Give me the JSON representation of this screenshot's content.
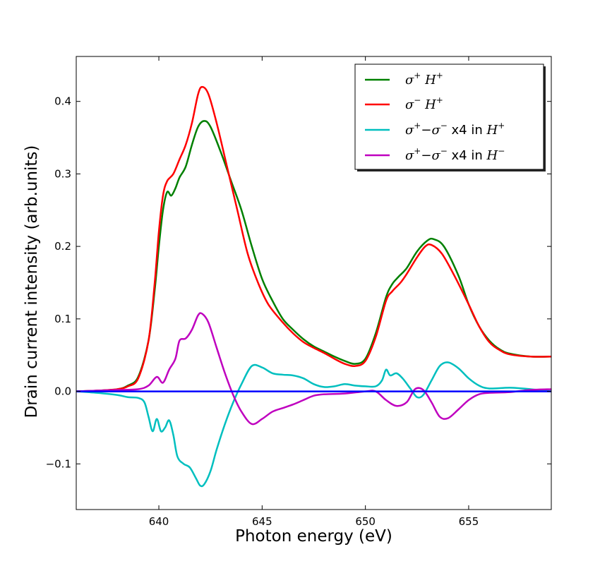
{
  "chart_data": {
    "type": "line",
    "xlabel": "Photon energy (eV)",
    "ylabel": "Drain current intensity (arb.units)",
    "xlim": [
      636,
      659
    ],
    "ylim": [
      -0.163,
      0.462
    ],
    "x_ticks": [
      640,
      645,
      650,
      655
    ],
    "x_tick_labels": [
      "640",
      "645",
      "650",
      "655"
    ],
    "y_ticks": [
      -0.1,
      0.0,
      0.1,
      0.2,
      0.3,
      0.4
    ],
    "y_tick_labels": [
      "−0.1",
      "0.0",
      "0.1",
      "0.2",
      "0.3",
      "0.4"
    ],
    "grid": false,
    "legend_position": "top-right",
    "baseline": {
      "y": 0.0,
      "color": "#0000ff"
    },
    "legend": [
      {
        "base": "σ",
        "sup1": "+",
        "mid": " H",
        "sup2": "+",
        "suffix": ""
      },
      {
        "base": "σ",
        "sup1": "−",
        "mid": "  H",
        "sup2": "+",
        "suffix": ""
      },
      {
        "base": "σ",
        "sup1": "+",
        "mid": "−σ",
        "sup2": "−",
        "suffix": "  x4 in ",
        "tail": "H",
        "sup3": "+"
      },
      {
        "base": "σ",
        "sup1": "+",
        "mid": "−σ",
        "sup2": "−",
        "suffix": "  x4 in ",
        "tail": "H",
        "sup3": "−"
      }
    ],
    "series": [
      {
        "color": "#008000",
        "points": [
          [
            636,
            0
          ],
          [
            637,
            0.001
          ],
          [
            638,
            0.003
          ],
          [
            638.5,
            0.008
          ],
          [
            639,
            0.02
          ],
          [
            639.5,
            0.07
          ],
          [
            639.8,
            0.14
          ],
          [
            640,
            0.2
          ],
          [
            640.2,
            0.25
          ],
          [
            640.4,
            0.275
          ],
          [
            640.6,
            0.27
          ],
          [
            640.8,
            0.28
          ],
          [
            641,
            0.295
          ],
          [
            641.3,
            0.31
          ],
          [
            641.6,
            0.34
          ],
          [
            641.9,
            0.365
          ],
          [
            642.2,
            0.373
          ],
          [
            642.5,
            0.365
          ],
          [
            643,
            0.33
          ],
          [
            643.5,
            0.29
          ],
          [
            644,
            0.25
          ],
          [
            644.5,
            0.2
          ],
          [
            645,
            0.155
          ],
          [
            645.5,
            0.125
          ],
          [
            646,
            0.1
          ],
          [
            646.5,
            0.085
          ],
          [
            647,
            0.072
          ],
          [
            647.5,
            0.062
          ],
          [
            648,
            0.055
          ],
          [
            648.5,
            0.048
          ],
          [
            649,
            0.042
          ],
          [
            649.5,
            0.038
          ],
          [
            650,
            0.045
          ],
          [
            650.5,
            0.08
          ],
          [
            651,
            0.13
          ],
          [
            651.3,
            0.148
          ],
          [
            651.6,
            0.158
          ],
          [
            652,
            0.17
          ],
          [
            652.5,
            0.193
          ],
          [
            653,
            0.208
          ],
          [
            653.3,
            0.21
          ],
          [
            653.8,
            0.2
          ],
          [
            654.5,
            0.16
          ],
          [
            655,
            0.12
          ],
          [
            655.5,
            0.09
          ],
          [
            656,
            0.07
          ],
          [
            656.5,
            0.058
          ],
          [
            657,
            0.052
          ],
          [
            658,
            0.048
          ],
          [
            659,
            0.048
          ]
        ]
      },
      {
        "color": "#ff0000",
        "points": [
          [
            636,
            0
          ],
          [
            637,
            0.001
          ],
          [
            638,
            0.003
          ],
          [
            638.5,
            0.007
          ],
          [
            639,
            0.018
          ],
          [
            639.5,
            0.07
          ],
          [
            639.8,
            0.15
          ],
          [
            640,
            0.22
          ],
          [
            640.2,
            0.27
          ],
          [
            640.4,
            0.29
          ],
          [
            640.7,
            0.3
          ],
          [
            641,
            0.32
          ],
          [
            641.3,
            0.34
          ],
          [
            641.6,
            0.37
          ],
          [
            641.9,
            0.41
          ],
          [
            642.1,
            0.42
          ],
          [
            642.4,
            0.41
          ],
          [
            642.8,
            0.37
          ],
          [
            643.3,
            0.31
          ],
          [
            643.8,
            0.25
          ],
          [
            644.3,
            0.19
          ],
          [
            644.8,
            0.15
          ],
          [
            645.3,
            0.12
          ],
          [
            646,
            0.095
          ],
          [
            646.5,
            0.08
          ],
          [
            647,
            0.068
          ],
          [
            647.5,
            0.06
          ],
          [
            648,
            0.053
          ],
          [
            648.5,
            0.045
          ],
          [
            649,
            0.038
          ],
          [
            649.5,
            0.035
          ],
          [
            650,
            0.042
          ],
          [
            650.5,
            0.075
          ],
          [
            651,
            0.125
          ],
          [
            651.3,
            0.138
          ],
          [
            651.7,
            0.15
          ],
          [
            652,
            0.162
          ],
          [
            652.5,
            0.185
          ],
          [
            652.9,
            0.2
          ],
          [
            653.2,
            0.202
          ],
          [
            653.7,
            0.19
          ],
          [
            654.3,
            0.16
          ],
          [
            655,
            0.12
          ],
          [
            655.5,
            0.09
          ],
          [
            656,
            0.068
          ],
          [
            656.5,
            0.057
          ],
          [
            657,
            0.051
          ],
          [
            658,
            0.048
          ],
          [
            659,
            0.048
          ]
        ]
      },
      {
        "color": "#00bfbf",
        "points": [
          [
            636,
            0
          ],
          [
            637,
            -0.002
          ],
          [
            638,
            -0.005
          ],
          [
            638.5,
            -0.008
          ],
          [
            639,
            -0.009
          ],
          [
            639.3,
            -0.015
          ],
          [
            639.5,
            -0.035
          ],
          [
            639.7,
            -0.055
          ],
          [
            639.9,
            -0.038
          ],
          [
            640.1,
            -0.055
          ],
          [
            640.3,
            -0.05
          ],
          [
            640.5,
            -0.04
          ],
          [
            640.7,
            -0.06
          ],
          [
            640.9,
            -0.09
          ],
          [
            641.2,
            -0.1
          ],
          [
            641.5,
            -0.105
          ],
          [
            641.8,
            -0.12
          ],
          [
            642,
            -0.13
          ],
          [
            642.2,
            -0.128
          ],
          [
            642.5,
            -0.11
          ],
          [
            642.8,
            -0.08
          ],
          [
            643.2,
            -0.045
          ],
          [
            643.6,
            -0.015
          ],
          [
            644,
            0.01
          ],
          [
            644.5,
            0.035
          ],
          [
            645,
            0.033
          ],
          [
            645.5,
            0.025
          ],
          [
            646,
            0.023
          ],
          [
            646.5,
            0.022
          ],
          [
            647,
            0.018
          ],
          [
            647.5,
            0.01
          ],
          [
            648,
            0.006
          ],
          [
            648.5,
            0.007
          ],
          [
            649,
            0.01
          ],
          [
            649.5,
            0.008
          ],
          [
            650,
            0.007
          ],
          [
            650.5,
            0.007
          ],
          [
            650.8,
            0.015
          ],
          [
            651,
            0.03
          ],
          [
            651.2,
            0.022
          ],
          [
            651.5,
            0.025
          ],
          [
            651.8,
            0.018
          ],
          [
            652.2,
            0.003
          ],
          [
            652.5,
            -0.008
          ],
          [
            652.8,
            -0.005
          ],
          [
            653.2,
            0.015
          ],
          [
            653.6,
            0.035
          ],
          [
            654,
            0.04
          ],
          [
            654.5,
            0.032
          ],
          [
            655,
            0.018
          ],
          [
            655.5,
            0.008
          ],
          [
            656,
            0.004
          ],
          [
            657,
            0.005
          ],
          [
            658,
            0.003
          ],
          [
            659,
            0
          ]
        ]
      },
      {
        "color": "#bf00bf",
        "points": [
          [
            636,
            0
          ],
          [
            637,
            0.001
          ],
          [
            638,
            0.002
          ],
          [
            639,
            0.003
          ],
          [
            639.5,
            0.008
          ],
          [
            639.9,
            0.02
          ],
          [
            640.2,
            0.012
          ],
          [
            640.5,
            0.03
          ],
          [
            640.8,
            0.045
          ],
          [
            641,
            0.07
          ],
          [
            641.3,
            0.073
          ],
          [
            641.6,
            0.085
          ],
          [
            641.9,
            0.105
          ],
          [
            642.1,
            0.107
          ],
          [
            642.4,
            0.095
          ],
          [
            642.8,
            0.06
          ],
          [
            643.2,
            0.025
          ],
          [
            643.6,
            -0.005
          ],
          [
            644,
            -0.028
          ],
          [
            644.5,
            -0.045
          ],
          [
            645,
            -0.038
          ],
          [
            645.5,
            -0.028
          ],
          [
            646,
            -0.023
          ],
          [
            646.5,
            -0.018
          ],
          [
            647,
            -0.012
          ],
          [
            647.5,
            -0.006
          ],
          [
            648,
            -0.004
          ],
          [
            649,
            -0.003
          ],
          [
            650,
            0
          ],
          [
            650.5,
            0
          ],
          [
            651,
            -0.012
          ],
          [
            651.5,
            -0.02
          ],
          [
            652,
            -0.015
          ],
          [
            652.4,
            0.003
          ],
          [
            652.8,
            0.002
          ],
          [
            653.2,
            -0.015
          ],
          [
            653.6,
            -0.035
          ],
          [
            654,
            -0.037
          ],
          [
            654.5,
            -0.025
          ],
          [
            655,
            -0.012
          ],
          [
            655.5,
            -0.004
          ],
          [
            656,
            -0.002
          ],
          [
            657,
            -0.001
          ],
          [
            658,
            0.002
          ],
          [
            659,
            0.003
          ]
        ]
      }
    ]
  }
}
